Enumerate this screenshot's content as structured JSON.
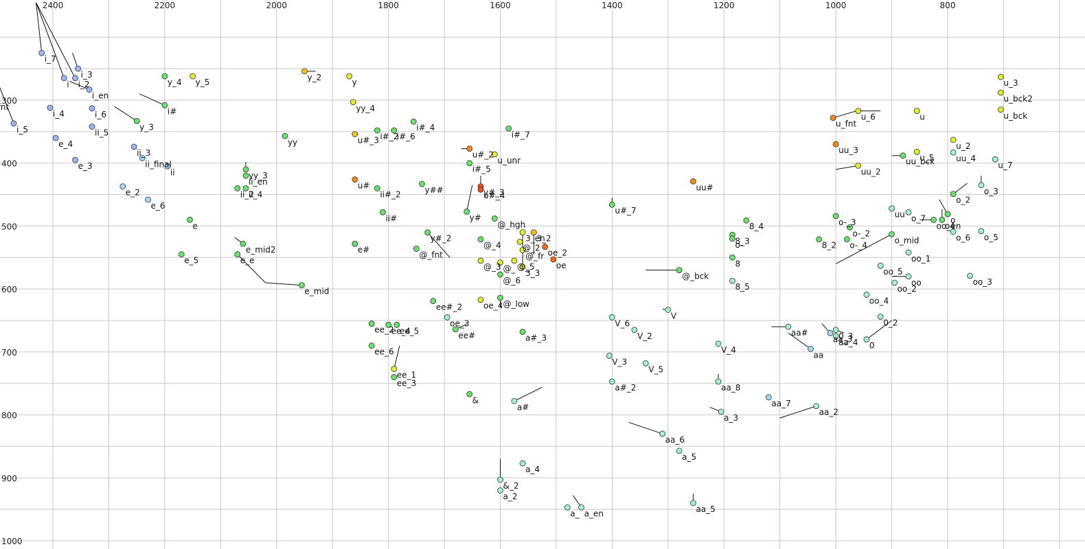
{
  "chart_data": {
    "type": "scatter",
    "title": "",
    "xlabel": "",
    "ylabel": "",
    "x_axis": {
      "reversed": true,
      "range": [
        2500,
        650
      ],
      "ticks": [
        2400,
        2200,
        2000,
        1800,
        1600,
        1400,
        1200,
        1000,
        800
      ]
    },
    "y_axis": {
      "reversed": true,
      "range": [
        145,
        1000
      ],
      "ticks": [
        300,
        400,
        500,
        600,
        700,
        800,
        900,
        1000
      ]
    },
    "grid": true,
    "points": [
      {
        "label": "i_7",
        "x": 2420,
        "y": 225,
        "color": "#9db6f0",
        "tx": 2430,
        "ty": 145
      },
      {
        "label": "i_3",
        "x": 2355,
        "y": 250,
        "color": "#9db6f0",
        "tx": 2365,
        "ty": 225
      },
      {
        "label": "i",
        "x": 2380,
        "y": 265,
        "color": "#9db6f0",
        "tx": 2430,
        "ty": 145
      },
      {
        "label": "i_2",
        "x": 2360,
        "y": 265,
        "color": "#9db6f0",
        "tx": 2430,
        "ty": 145
      },
      {
        "label": "i_en",
        "x": 2335,
        "y": 283,
        "color": "#9db6f0",
        "tx": 2370,
        "ty": 270
      },
      {
        "label": "i_6",
        "x": 2330,
        "y": 313,
        "color": "#9db6f0"
      },
      {
        "label": "i_fnt",
        "x": 2515,
        "y": 301,
        "color": "#bfb8f2",
        "tx": 2510,
        "ty": 245
      },
      {
        "label": "i_5",
        "x": 2470,
        "y": 337,
        "color": "#9db6f0",
        "tx": 2510,
        "ty": 245
      },
      {
        "label": "i_4",
        "x": 2405,
        "y": 312,
        "color": "#9db6f0"
      },
      {
        "label": "e_4",
        "x": 2395,
        "y": 360,
        "color": "#9db6f0"
      },
      {
        "label": "e_3",
        "x": 2360,
        "y": 395,
        "color": "#9db6f0"
      },
      {
        "label": "ii_5",
        "x": 2330,
        "y": 342,
        "color": "#9db6f0"
      },
      {
        "label": "ii_3",
        "x": 2255,
        "y": 374,
        "color": "#9db6f0"
      },
      {
        "label": "ii_final",
        "x": 2240,
        "y": 392,
        "color": "#a4d6f8"
      },
      {
        "label": "ii",
        "x": 2195,
        "y": 405,
        "color": "#a4d6f8"
      },
      {
        "label": "e_2",
        "x": 2275,
        "y": 437,
        "color": "#a4d6f8"
      },
      {
        "label": "e_6",
        "x": 2230,
        "y": 458,
        "color": "#a4d6f8"
      },
      {
        "label": "y_4",
        "x": 2200,
        "y": 262,
        "color": "#6ce06c"
      },
      {
        "label": "y_5",
        "x": 2150,
        "y": 262,
        "color": "#e2ee2a"
      },
      {
        "label": "i#",
        "x": 2200,
        "y": 308,
        "color": "#6ce06c",
        "tx": 2245,
        "ty": 290
      },
      {
        "label": "y_3",
        "x": 2250,
        "y": 333,
        "color": "#6ce06c",
        "tx": 2290,
        "ty": 310
      },
      {
        "label": "y_2",
        "x": 1950,
        "y": 254,
        "color": "#f2c21a",
        "tx": 1930,
        "ty": 254
      },
      {
        "label": "y",
        "x": 1870,
        "y": 262,
        "color": "#e2ee2a"
      },
      {
        "label": "yy_4",
        "x": 1863,
        "y": 303,
        "color": "#e2ee2a"
      },
      {
        "label": "yy",
        "x": 1985,
        "y": 357,
        "color": "#6ce06c"
      },
      {
        "label": "i#_2",
        "x": 1820,
        "y": 348,
        "color": "#6ce06c"
      },
      {
        "label": "i#_6",
        "x": 1790,
        "y": 348,
        "color": "#6ce06c"
      },
      {
        "label": "i#_4",
        "x": 1755,
        "y": 334,
        "color": "#6ce06c"
      },
      {
        "label": "u#_3",
        "x": 1860,
        "y": 354,
        "color": "#f2c21a"
      },
      {
        "label": "yy_3",
        "x": 2055,
        "y": 410,
        "color": "#6ce06c",
        "tx": 2055,
        "ty": 398
      },
      {
        "label": "ii_en",
        "x": 2055,
        "y": 420,
        "color": "#6ce06c"
      },
      {
        "label": "ii_2",
        "x": 2070,
        "y": 440,
        "color": "#6ce06c"
      },
      {
        "label": "ii_4",
        "x": 2055,
        "y": 440,
        "color": "#6ce06c"
      },
      {
        "label": "ii#_2",
        "x": 1820,
        "y": 440,
        "color": "#6ce06c"
      },
      {
        "label": "u#",
        "x": 1860,
        "y": 426,
        "color": "#ee8c1a"
      },
      {
        "label": "y##",
        "x": 1740,
        "y": 433,
        "color": "#6ce06c"
      },
      {
        "label": "ii#",
        "x": 1810,
        "y": 478,
        "color": "#6ce06c"
      },
      {
        "label": "e",
        "x": 2155,
        "y": 490,
        "color": "#6ce06c"
      },
      {
        "label": "i#_7",
        "x": 1585,
        "y": 345,
        "color": "#6ce06c"
      },
      {
        "label": "u#_2",
        "x": 1655,
        "y": 377,
        "color": "#ee8c1a",
        "tx": 1670,
        "ty": 377
      },
      {
        "label": "u_unr",
        "x": 1610,
        "y": 386,
        "color": "#e2ee2a"
      },
      {
        "label": "i#_5",
        "x": 1655,
        "y": 400,
        "color": "#6ce06c"
      },
      {
        "label": "y#_3",
        "x": 1635,
        "y": 437,
        "color": "#e85020",
        "tx": 1635,
        "ty": 420
      },
      {
        "label": "u#_4",
        "x": 1635,
        "y": 442,
        "color": "#e85020"
      },
      {
        "label": "y#",
        "x": 1660,
        "y": 477,
        "color": "#6ce06c",
        "tx": 1650,
        "ty": 435
      },
      {
        "label": "@_hgh",
        "x": 1610,
        "y": 488,
        "color": "#6ce06c"
      },
      {
        "label": "y#_2",
        "x": 1730,
        "y": 510,
        "color": "#6ce06c",
        "tx": 1690,
        "ty": 550
      },
      {
        "label": "e_mid2",
        "x": 2060,
        "y": 528,
        "color": "#6ce06c",
        "tx": 2075,
        "ty": 518
      },
      {
        "label": "e_5",
        "x": 2170,
        "y": 545,
        "color": "#6ce06c"
      },
      {
        "label": "e_e",
        "x": 2070,
        "y": 545,
        "color": "#6ce06c",
        "tx": 2020,
        "ty": 590
      },
      {
        "label": "e_mid",
        "x": 1955,
        "y": 594,
        "color": "#6ce06c",
        "tx": 2020,
        "ty": 590
      },
      {
        "label": "e#",
        "x": 1860,
        "y": 528,
        "color": "#6ce06c"
      },
      {
        "label": "@_fnt",
        "x": 1750,
        "y": 536,
        "color": "#6ce06c"
      },
      {
        "label": "@_4",
        "x": 1635,
        "y": 521,
        "color": "#6ce06c"
      },
      {
        "label": "@_3",
        "x": 1635,
        "y": 555,
        "color": "#e2ee2a"
      },
      {
        "label": "3_en",
        "x": 1560,
        "y": 510,
        "color": "#e2ee2a",
        "tx": 1560,
        "ty": 560
      },
      {
        "label": "3_2",
        "x": 1540,
        "y": 510,
        "color": "#f2c21a",
        "tx": 1540,
        "ty": 545
      },
      {
        "label": "@_2",
        "x": 1565,
        "y": 525,
        "color": "#e2ee2a"
      },
      {
        "label": "@_fr",
        "x": 1560,
        "y": 538,
        "color": "#e2ee2a"
      },
      {
        "label": "@_5",
        "x": 1575,
        "y": 555,
        "color": "#e2ee2a"
      },
      {
        "label": "@_",
        "x": 1600,
        "y": 558,
        "color": "#e2ee2a"
      },
      {
        "label": "3_3",
        "x": 1560,
        "y": 565,
        "color": "#e2ee2a"
      },
      {
        "label": "@_6",
        "x": 1600,
        "y": 577,
        "color": "#6ce06c"
      },
      {
        "label": "oe_2",
        "x": 1520,
        "y": 533,
        "color": "#ee6c1a"
      },
      {
        "label": "oe",
        "x": 1505,
        "y": 553,
        "color": "#ee6c1a"
      },
      {
        "label": "@_low",
        "x": 1600,
        "y": 614,
        "color": "#6ce06c",
        "tx": 1600,
        "ty": 629
      },
      {
        "label": "oe_4",
        "x": 1635,
        "y": 617,
        "color": "#e2ee2a"
      },
      {
        "label": "ee#_2",
        "x": 1720,
        "y": 619,
        "color": "#6ce06c"
      },
      {
        "label": "oe_3",
        "x": 1695,
        "y": 645,
        "color": "#a4f0cc"
      },
      {
        "label": "ee#",
        "x": 1680,
        "y": 664,
        "color": "#6ce06c",
        "tx": 1660,
        "ty": 656
      },
      {
        "label": "ee_4",
        "x": 1800,
        "y": 657,
        "color": "#6ce06c"
      },
      {
        "label": "ee_5",
        "x": 1785,
        "y": 657,
        "color": "#6ce06c"
      },
      {
        "label": "ee_2",
        "x": 1830,
        "y": 655,
        "color": "#6ce06c"
      },
      {
        "label": "ee_6",
        "x": 1830,
        "y": 690,
        "color": "#6ce06c"
      },
      {
        "label": "ee_1",
        "x": 1790,
        "y": 727,
        "color": "#e2ee2a",
        "tx": 1780,
        "ty": 690
      },
      {
        "label": "ee_3",
        "x": 1790,
        "y": 740,
        "color": "#6ce06c"
      },
      {
        "label": "&",
        "x": 1655,
        "y": 767,
        "color": "#6ce06c"
      },
      {
        "label": "a#_3",
        "x": 1560,
        "y": 668,
        "color": "#6ce06c"
      },
      {
        "label": "a#",
        "x": 1575,
        "y": 778,
        "color": "#a4f0cc",
        "tx": 1525,
        "ty": 756
      },
      {
        "label": "a_4",
        "x": 1560,
        "y": 877,
        "color": "#a4f0cc"
      },
      {
        "label": "&_2",
        "x": 1600,
        "y": 903,
        "color": "#a4f0cc",
        "tx": 1600,
        "ty": 870
      },
      {
        "label": "a_2",
        "x": 1600,
        "y": 920,
        "color": "#a4f0cc"
      },
      {
        "label": "a_en",
        "x": 1455,
        "y": 947,
        "color": "#a4f0cc",
        "tx": 1470,
        "ty": 928
      },
      {
        "label": "a_",
        "x": 1480,
        "y": 947,
        "color": "#a4f0cc"
      },
      {
        "label": "u#_7",
        "x": 1400,
        "y": 466,
        "color": "#6ce06c",
        "tx": 1400,
        "ty": 455
      },
      {
        "label": "uu#",
        "x": 1255,
        "y": 429,
        "color": "#ee8c1a"
      },
      {
        "label": "@_bck",
        "x": 1280,
        "y": 570,
        "color": "#6ce06c",
        "tx": 1340,
        "ty": 570
      },
      {
        "label": "V",
        "x": 1300,
        "y": 633,
        "color": "#a4f0cc",
        "tx": 1310,
        "ty": 632
      },
      {
        "label": "V_6",
        "x": 1400,
        "y": 645,
        "color": "#a4f0cc"
      },
      {
        "label": "V_2",
        "x": 1360,
        "y": 665,
        "color": "#a4f0cc"
      },
      {
        "label": "V_3",
        "x": 1405,
        "y": 706,
        "color": "#a4f0cc"
      },
      {
        "label": "V_5",
        "x": 1340,
        "y": 718,
        "color": "#a4f0cc"
      },
      {
        "label": "a#_2",
        "x": 1400,
        "y": 747,
        "color": "#a4f0cc"
      },
      {
        "label": "aa_6",
        "x": 1310,
        "y": 830,
        "color": "#a4f0cc",
        "tx": 1370,
        "ty": 812
      },
      {
        "label": "a_5",
        "x": 1280,
        "y": 857,
        "color": "#a4f0cc"
      },
      {
        "label": "aa_5",
        "x": 1255,
        "y": 940,
        "color": "#a4f0cc",
        "tx": 1255,
        "ty": 925
      },
      {
        "label": "8_4",
        "x": 1160,
        "y": 491,
        "color": "#6ce06c"
      },
      {
        "label": "8_3",
        "x": 1185,
        "y": 514,
        "color": "#6ce06c"
      },
      {
        "label": "o-",
        "x": 1185,
        "y": 520,
        "color": "#6ce06c"
      },
      {
        "label": "8",
        "x": 1185,
        "y": 550,
        "color": "#6ce06c"
      },
      {
        "label": "8_5",
        "x": 1185,
        "y": 587,
        "color": "#a4f0cc"
      },
      {
        "label": "V_4",
        "x": 1210,
        "y": 687,
        "color": "#a4f0cc"
      },
      {
        "label": "aa_8",
        "x": 1210,
        "y": 747,
        "color": "#a4f0cc",
        "tx": 1210,
        "ty": 735
      },
      {
        "label": "a_3",
        "x": 1205,
        "y": 795,
        "color": "#a4f0cc",
        "tx": 1225,
        "ty": 788
      },
      {
        "label": "aa#",
        "x": 1085,
        "y": 660,
        "color": "#a4f0cc",
        "tx": 1115,
        "ty": 660
      },
      {
        "label": "aa_7",
        "x": 1120,
        "y": 772,
        "color": "#a4d6f8"
      },
      {
        "label": "aa_2",
        "x": 1035,
        "y": 786,
        "color": "#a4f0cc",
        "tx": 1100,
        "ty": 805
      },
      {
        "label": "aa",
        "x": 1045,
        "y": 695,
        "color": "#a4d6f8",
        "tx": 1085,
        "ty": 670
      },
      {
        "label": "aa_3",
        "x": 1010,
        "y": 670,
        "color": "#a4d6f8",
        "tx": 1025,
        "ty": 655
      },
      {
        "label": "0_3",
        "x": 1000,
        "y": 665,
        "color": "#a4f0cc",
        "tx": 985,
        "ty": 670
      },
      {
        "label": "aa_4",
        "x": 1000,
        "y": 675,
        "color": "#a4f0cc"
      },
      {
        "label": "0",
        "x": 945,
        "y": 680,
        "color": "#a4f0cc",
        "tx": 900,
        "ty": 650
      },
      {
        "label": "0_2",
        "x": 920,
        "y": 644,
        "color": "#a4f0cc"
      },
      {
        "label": "8_2",
        "x": 1030,
        "y": 521,
        "color": "#6ce06c"
      },
      {
        "label": "o-_3",
        "x": 1000,
        "y": 484,
        "color": "#6ce06c"
      },
      {
        "label": "o-_2",
        "x": 975,
        "y": 502,
        "color": "#6ce06c"
      },
      {
        "label": "o-_4",
        "x": 980,
        "y": 521,
        "color": "#6ce06c"
      },
      {
        "label": "o_mid",
        "x": 900,
        "y": 513,
        "color": "#6ce06c",
        "tx": 1000,
        "ty": 560
      },
      {
        "label": "oo_5",
        "x": 920,
        "y": 563,
        "color": "#a4f0cc"
      },
      {
        "label": "oo_2",
        "x": 895,
        "y": 590,
        "color": "#a4f0cc"
      },
      {
        "label": "oo",
        "x": 870,
        "y": 580,
        "color": "#a4f0cc",
        "tx": 900,
        "ty": 580
      },
      {
        "label": "oo_4",
        "x": 945,
        "y": 609,
        "color": "#a4f0cc"
      },
      {
        "label": "oo_1",
        "x": 870,
        "y": 542,
        "color": "#a4f0cc"
      },
      {
        "label": "o_7",
        "x": 870,
        "y": 478,
        "color": "#a4f0cc"
      },
      {
        "label": "oo_en",
        "x": 825,
        "y": 490,
        "color": "#6ce06c",
        "tx": 850,
        "ty": 490
      },
      {
        "label": "o4",
        "x": 810,
        "y": 490,
        "color": "#6ce06c",
        "tx": 810,
        "ty": 473
      },
      {
        "label": "o",
        "x": 800,
        "y": 481,
        "color": "#6ce06c",
        "tx": 815,
        "ty": 458
      },
      {
        "label": "uu",
        "x": 900,
        "y": 472,
        "color": "#a4f0cc"
      },
      {
        "label": "o_6",
        "x": 790,
        "y": 509,
        "color": "#a4f0cc"
      },
      {
        "label": "o_2",
        "x": 790,
        "y": 449,
        "color": "#6ce06c",
        "tx": 765,
        "ty": 432
      },
      {
        "label": "o_5",
        "x": 740,
        "y": 508,
        "color": "#a4f0cc"
      },
      {
        "label": "oo_3",
        "x": 760,
        "y": 579,
        "color": "#a4f0cc"
      },
      {
        "label": "o_3",
        "x": 740,
        "y": 435,
        "color": "#a4f0cc",
        "tx": 740,
        "ty": 420
      },
      {
        "label": "u_7",
        "x": 715,
        "y": 394,
        "color": "#a4f0cc"
      },
      {
        "label": "uu_4",
        "x": 790,
        "y": 383,
        "color": "#a4f0cc"
      },
      {
        "label": "u_2",
        "x": 790,
        "y": 363,
        "color": "#e2ee2a"
      },
      {
        "label": "u_5",
        "x": 855,
        "y": 382,
        "color": "#e2ee2a"
      },
      {
        "label": "uu_bck",
        "x": 880,
        "y": 388,
        "color": "#6ce06c",
        "tx": 900,
        "ty": 388
      },
      {
        "label": "u",
        "x": 855,
        "y": 317,
        "color": "#e2ee2a"
      },
      {
        "label": "u_6",
        "x": 960,
        "y": 317,
        "color": "#e2ee2a",
        "tx": 920,
        "ty": 317
      },
      {
        "label": "u_fnt",
        "x": 1005,
        "y": 328,
        "color": "#ee8c1a",
        "tx": 955,
        "ty": 315
      },
      {
        "label": "uu_3",
        "x": 1000,
        "y": 370,
        "color": "#ee8c1a"
      },
      {
        "label": "uu_2",
        "x": 960,
        "y": 404,
        "color": "#e2ee2a",
        "tx": 1000,
        "ty": 410
      },
      {
        "label": "u_3",
        "x": 705,
        "y": 263,
        "color": "#e2ee2a"
      },
      {
        "label": "u_bck2",
        "x": 705,
        "y": 288,
        "color": "#e2ee2a"
      },
      {
        "label": "u_bck",
        "x": 705,
        "y": 315,
        "color": "#e2ee2a"
      }
    ]
  }
}
